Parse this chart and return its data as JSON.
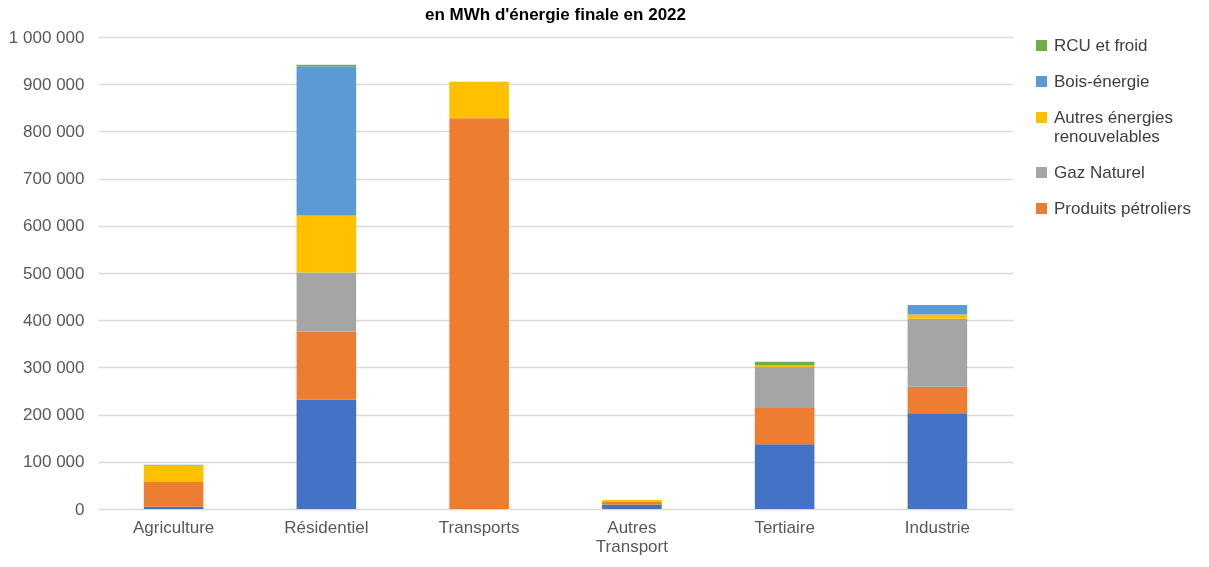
{
  "chart_data": {
    "type": "bar",
    "title": "en MWh d'énergie finale en 2022",
    "stacked": true,
    "categories": [
      "Agriculture",
      "Résidentiel",
      "Transports",
      "Autres Transport",
      "Tertiaire",
      "Industrie"
    ],
    "series": [
      {
        "color": "#4472c4",
        "values": [
          5000,
          232000,
          0,
          9000,
          137000,
          203000
        ]
      },
      {
        "name": "Produits pétroliers",
        "color": "#ed7d31",
        "values": [
          52000,
          144000,
          828000,
          7000,
          77000,
          56000
        ]
      },
      {
        "name": "Gaz Naturel",
        "color": "#a5a5a5",
        "values": [
          0,
          125000,
          0,
          0,
          87000,
          144000
        ]
      },
      {
        "name": "Autres énergies renouvelables",
        "color": "#ffc000",
        "values": [
          35000,
          121000,
          77000,
          3000,
          3000,
          9000
        ]
      },
      {
        "name": "Bois-énergie",
        "color": "#5b9bd5",
        "values": [
          2000,
          316000,
          0,
          0,
          0,
          20000
        ]
      },
      {
        "name": "RCU et froid",
        "color": "#70ad47",
        "values": [
          0,
          3000,
          0,
          0,
          8000,
          0
        ]
      }
    ],
    "ylim": [
      0,
      1000000
    ],
    "yticks": [
      {
        "value": 0,
        "label": "0"
      },
      {
        "value": 100000,
        "label": "100 000"
      },
      {
        "value": 200000,
        "label": "200 000"
      },
      {
        "value": 300000,
        "label": "300 000"
      },
      {
        "value": 400000,
        "label": "400 000"
      },
      {
        "value": 500000,
        "label": "500 000"
      },
      {
        "value": 600000,
        "label": "600 000"
      },
      {
        "value": 700000,
        "label": "700 000"
      },
      {
        "value": 800000,
        "label": "800 000"
      },
      {
        "value": 900000,
        "label": "900 000"
      },
      {
        "value": 1000000,
        "label": "1 000 000"
      }
    ],
    "grid": "y",
    "legend": "right"
  }
}
